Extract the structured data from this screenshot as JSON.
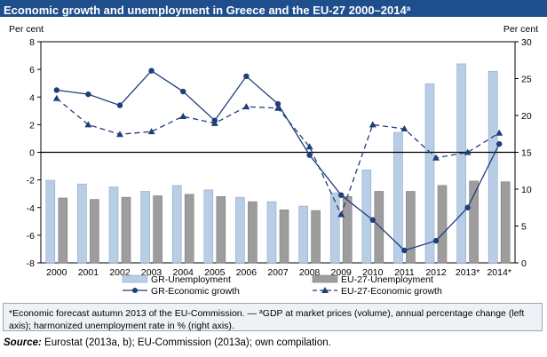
{
  "title": {
    "main": "Economic growth and unemployment in Greece and the EU-27 2000–2014",
    "sup": "a"
  },
  "chart_data": {
    "type": "bar",
    "title": "Economic growth and unemployment in Greece and the EU-27 2000–2014",
    "categories": [
      "2000",
      "2001",
      "2002",
      "2003",
      "2004",
      "2005",
      "2006",
      "2007",
      "2008",
      "2009",
      "2010",
      "2011",
      "2012",
      "2013*",
      "2014*"
    ],
    "left_axis": {
      "label": "Per cent",
      "range": [
        -8,
        8
      ],
      "ticks": [
        8,
        6,
        4,
        2,
        0,
        -2,
        -4,
        -6,
        -8
      ]
    },
    "right_axis": {
      "label": "Per cent",
      "range": [
        0,
        30
      ],
      "ticks": [
        30,
        25,
        20,
        15,
        10,
        5,
        0
      ]
    },
    "series": [
      {
        "name": "GR-Unemployment",
        "type": "bar",
        "axis": "right",
        "color": "#b8cde6",
        "values": [
          11.2,
          10.7,
          10.3,
          9.7,
          10.5,
          9.9,
          8.9,
          8.3,
          7.7,
          9.5,
          12.6,
          17.7,
          24.3,
          27.0,
          26.0
        ]
      },
      {
        "name": "EU-27-Unemployment",
        "type": "bar",
        "axis": "right",
        "color": "#9d9d9d",
        "values": [
          8.8,
          8.6,
          8.9,
          9.1,
          9.3,
          9.0,
          8.3,
          7.2,
          7.1,
          9.0,
          9.7,
          9.7,
          10.5,
          11.1,
          11.0
        ]
      },
      {
        "name": "GR-Economic growth",
        "type": "line",
        "axis": "left",
        "color": "#1f3f7a",
        "marker": "circle",
        "dash": "solid",
        "values": [
          4.5,
          4.2,
          3.4,
          5.9,
          4.4,
          2.3,
          5.5,
          3.5,
          -0.2,
          -3.1,
          -4.9,
          -7.1,
          -6.4,
          -4.0,
          0.6
        ]
      },
      {
        "name": "EU-27-Economic growth",
        "type": "line",
        "axis": "left",
        "color": "#1f3f7a",
        "marker": "triangle",
        "dash": "dashed",
        "values": [
          3.9,
          2.0,
          1.3,
          1.5,
          2.6,
          2.1,
          3.3,
          3.2,
          0.4,
          -4.5,
          2.0,
          1.7,
          -0.4,
          0.0,
          1.4
        ]
      }
    ],
    "grid": false,
    "legend": "bottom"
  },
  "note": {
    "text_a": "*Economic forecast autumn 2013 of the EU-Commission. — ",
    "sup": "a",
    "text_b": "GDP at market prices (volume), annual percentage change (left axis); harmonized unemployment rate in % (right axis)."
  },
  "source": {
    "label": "Source:",
    "text": " Eurostat (2013a, b); EU-Commission (2013a); own compilation."
  }
}
